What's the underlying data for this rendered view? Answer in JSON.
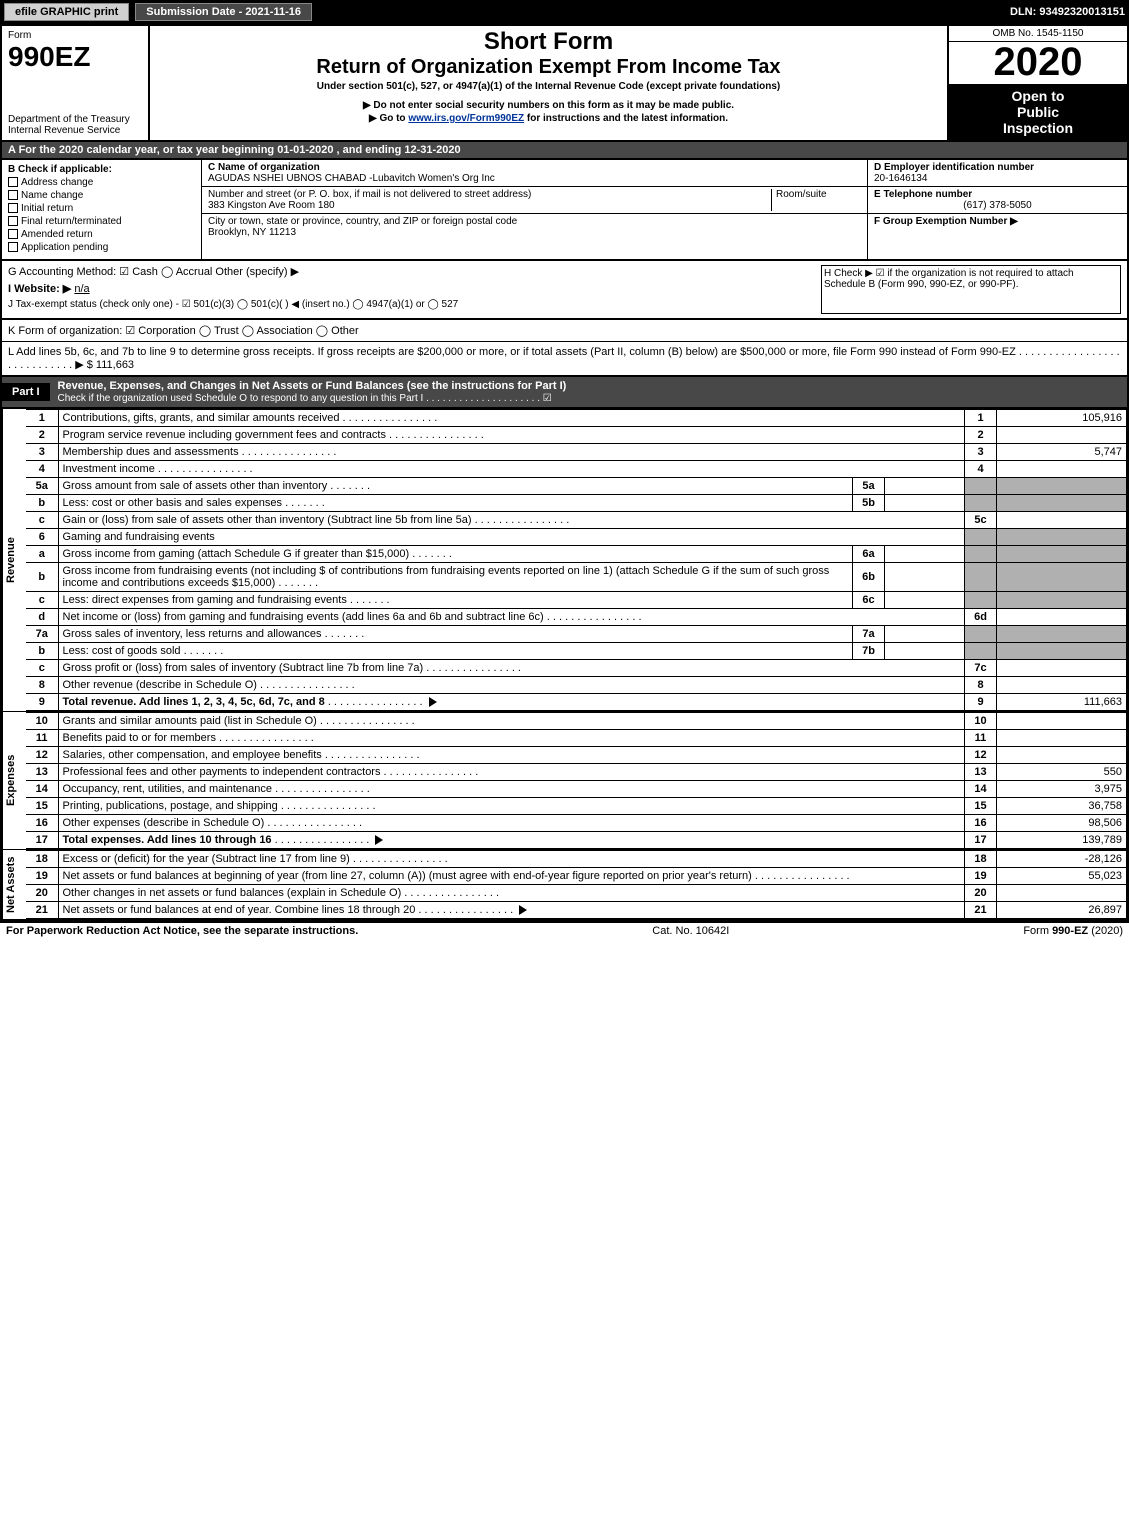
{
  "topbar": {
    "btn1": "efile GRAPHIC print",
    "btn2": "Submission Date - 2021-11-16",
    "dln": "DLN: 93492320013151"
  },
  "header": {
    "form_word": "Form",
    "form_no": "990EZ",
    "dept": "Department of the Treasury\nInternal Revenue Service",
    "title1": "Short Form",
    "title2": "Return of Organization Exempt From Income Tax",
    "sub1": "Under section 501(c), 527, or 4947(a)(1) of the Internal Revenue Code (except private foundations)",
    "sub2": "▶ Do not enter social security numbers on this form as it may be made public.",
    "sub3_pre": "▶ Go to ",
    "sub3_link": "www.irs.gov/Form990EZ",
    "sub3_post": " for instructions and the latest information.",
    "omb": "OMB No. 1545-1150",
    "year": "2020",
    "insp1": "Open to",
    "insp2": "Public",
    "insp3": "Inspection"
  },
  "rowA": "A For the 2020 calendar year, or tax year beginning 01-01-2020 , and ending 12-31-2020",
  "sectB": {
    "left_title": "B  Check if applicable:",
    "opts": [
      "Address change",
      "Name change",
      "Initial return",
      "Final return/terminated",
      "Amended return",
      "Application pending"
    ],
    "c_lbl": "C Name of organization",
    "c_val": "AGUDAS NSHEI UBNOS CHABAD -Lubavitch Women's Org Inc",
    "addr_lbl": "Number and street (or P. O. box, if mail is not delivered to street address)",
    "addr_lbl2": "Room/suite",
    "addr_val": "383 Kingston Ave Room 180",
    "city_lbl": "City or town, state or province, country, and ZIP or foreign postal code",
    "city_val": "Brooklyn, NY  11213",
    "d_lbl": "D Employer identification number",
    "d_val": "20-1646134",
    "e_lbl": "E Telephone number",
    "e_val": "(617) 378-5050",
    "f_lbl": "F Group Exemption Number  ▶"
  },
  "free": {
    "g": "G Accounting Method:   ☑ Cash   ◯ Accrual   Other (specify) ▶",
    "h": "H  Check ▶ ☑ if the organization is not required to attach Schedule B (Form 990, 990-EZ, or 990-PF).",
    "i_lbl": "I Website: ▶",
    "i_val": "n/a",
    "j": "J Tax-exempt status (check only one) - ☑ 501(c)(3) ◯ 501(c)(  ) ◀ (insert no.) ◯ 4947(a)(1) or ◯ 527",
    "k": "K Form of organization:  ☑ Corporation  ◯ Trust  ◯ Association  ◯ Other",
    "l": "L Add lines 5b, 6c, and 7b to line 9 to determine gross receipts. If gross receipts are $200,000 or more, or if total assets (Part II, column (B) below) are $500,000 or more, file Form 990 instead of Form 990-EZ .  .  .  .  .  .  .  .  .  .  .  .  .  .  .  .  .  .  .  .  .  .  .  .  .  .  .  . ▶ $ 111,663"
  },
  "part1": {
    "tag": "Part I",
    "title": "Revenue, Expenses, and Changes in Net Assets or Fund Balances (see the instructions for Part I)",
    "check": "Check if the organization used Schedule O to respond to any question in this Part I .  .  .  .  .  .  .  .  .  .  .  .  .  .  .  .  .  .  .  .  .  ☑"
  },
  "side": {
    "rev": "Revenue",
    "exp": "Expenses",
    "na": "Net Assets"
  },
  "rows": [
    {
      "n": "1",
      "d": "Contributions, gifts, grants, and similar amounts received",
      "num": "1",
      "v": "105,916"
    },
    {
      "n": "2",
      "d": "Program service revenue including government fees and contracts",
      "num": "2",
      "v": ""
    },
    {
      "n": "3",
      "d": "Membership dues and assessments",
      "num": "3",
      "v": "5,747"
    },
    {
      "n": "4",
      "d": "Investment income",
      "num": "4",
      "v": ""
    },
    {
      "n": "5a",
      "d": "Gross amount from sale of assets other than inventory",
      "sub": "5a",
      "subv": "",
      "grey": true
    },
    {
      "n": "b",
      "d": "Less: cost or other basis and sales expenses",
      "sub": "5b",
      "subv": "",
      "grey": true
    },
    {
      "n": "c",
      "d": "Gain or (loss) from sale of assets other than inventory (Subtract line 5b from line 5a)",
      "num": "5c",
      "v": ""
    },
    {
      "n": "6",
      "d": "Gaming and fundraising events",
      "grey": true,
      "noval": true
    },
    {
      "n": "a",
      "d": "Gross income from gaming (attach Schedule G if greater than $15,000)",
      "sub": "6a",
      "subv": "",
      "grey": true
    },
    {
      "n": "b",
      "d": "Gross income from fundraising events (not including $                 of contributions from fundraising events reported on line 1) (attach Schedule G if the sum of such gross income and contributions exceeds $15,000)",
      "sub": "6b",
      "subv": "",
      "grey": true
    },
    {
      "n": "c",
      "d": "Less: direct expenses from gaming and fundraising events",
      "sub": "6c",
      "subv": "",
      "grey": true
    },
    {
      "n": "d",
      "d": "Net income or (loss) from gaming and fundraising events (add lines 6a and 6b and subtract line 6c)",
      "num": "6d",
      "v": ""
    },
    {
      "n": "7a",
      "d": "Gross sales of inventory, less returns and allowances",
      "sub": "7a",
      "subv": "",
      "grey": true
    },
    {
      "n": "b",
      "d": "Less: cost of goods sold",
      "sub": "7b",
      "subv": "",
      "grey": true
    },
    {
      "n": "c",
      "d": "Gross profit or (loss) from sales of inventory (Subtract line 7b from line 7a)",
      "num": "7c",
      "v": ""
    },
    {
      "n": "8",
      "d": "Other revenue (describe in Schedule O)",
      "num": "8",
      "v": ""
    },
    {
      "n": "9",
      "d": "Total revenue. Add lines 1, 2, 3, 4, 5c, 6d, 7c, and 8",
      "num": "9",
      "v": "111,663",
      "bold": true,
      "tri": true
    }
  ],
  "rows_exp": [
    {
      "n": "10",
      "d": "Grants and similar amounts paid (list in Schedule O)",
      "num": "10",
      "v": ""
    },
    {
      "n": "11",
      "d": "Benefits paid to or for members",
      "num": "11",
      "v": ""
    },
    {
      "n": "12",
      "d": "Salaries, other compensation, and employee benefits",
      "num": "12",
      "v": ""
    },
    {
      "n": "13",
      "d": "Professional fees and other payments to independent contractors",
      "num": "13",
      "v": "550"
    },
    {
      "n": "14",
      "d": "Occupancy, rent, utilities, and maintenance",
      "num": "14",
      "v": "3,975"
    },
    {
      "n": "15",
      "d": "Printing, publications, postage, and shipping",
      "num": "15",
      "v": "36,758"
    },
    {
      "n": "16",
      "d": "Other expenses (describe in Schedule O)",
      "num": "16",
      "v": "98,506"
    },
    {
      "n": "17",
      "d": "Total expenses. Add lines 10 through 16",
      "num": "17",
      "v": "139,789",
      "bold": true,
      "tri": true
    }
  ],
  "rows_na": [
    {
      "n": "18",
      "d": "Excess or (deficit) for the year (Subtract line 17 from line 9)",
      "num": "18",
      "v": "-28,126"
    },
    {
      "n": "19",
      "d": "Net assets or fund balances at beginning of year (from line 27, column (A)) (must agree with end-of-year figure reported on prior year's return)",
      "num": "19",
      "v": "55,023"
    },
    {
      "n": "20",
      "d": "Other changes in net assets or fund balances (explain in Schedule O)",
      "num": "20",
      "v": ""
    },
    {
      "n": "21",
      "d": "Net assets or fund balances at end of year. Combine lines 18 through 20",
      "num": "21",
      "v": "26,897",
      "tri": true
    }
  ],
  "footer": {
    "l": "For Paperwork Reduction Act Notice, see the separate instructions.",
    "m": "Cat. No. 10642I",
    "r": "Form 990-EZ (2020)"
  },
  "colors": {
    "dark": "#484848",
    "black": "#000000",
    "grey": "#b0b0b0",
    "link": "#003399"
  }
}
